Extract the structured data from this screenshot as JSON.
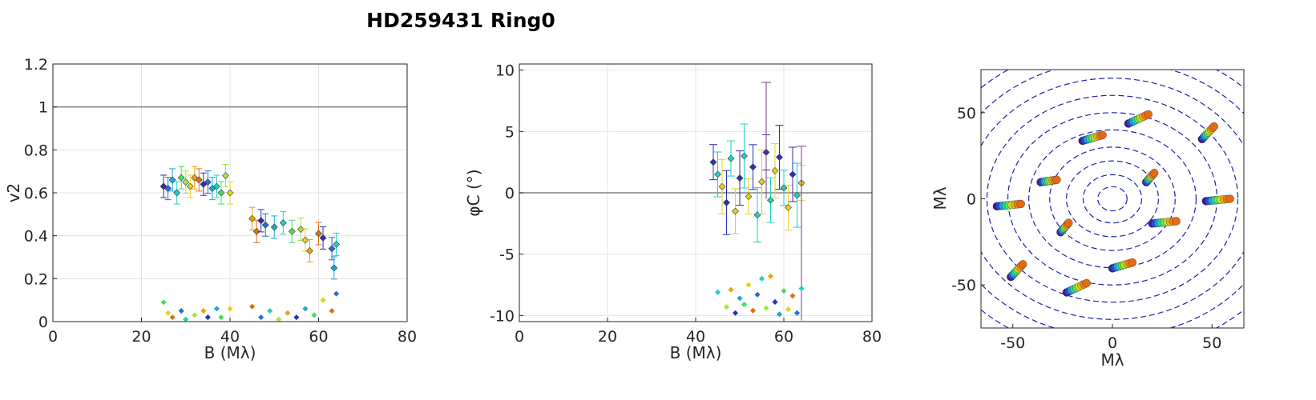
{
  "title": "HD259431  Ring0",
  "chart_data": [
    {
      "type": "scatter",
      "xlabel": "B (Mλ)",
      "ylabel": "v2",
      "xlim": [
        0,
        80
      ],
      "ylim": [
        0,
        1.2
      ],
      "xticks": [
        "0",
        "20",
        "40",
        "60",
        "80"
      ],
      "yticks": [
        "0",
        "0.2",
        "0.4",
        "0.6",
        "0.8",
        "1",
        "1.2"
      ],
      "grid": true,
      "reference_line": 1,
      "observed": [
        {
          "x": 25,
          "y": 0.63
        },
        {
          "x": 26,
          "y": 0.62
        },
        {
          "x": 27,
          "y": 0.66
        },
        {
          "x": 28,
          "y": 0.6
        },
        {
          "x": 29,
          "y": 0.67
        },
        {
          "x": 30,
          "y": 0.65
        },
        {
          "x": 31,
          "y": 0.63
        },
        {
          "x": 32,
          "y": 0.67
        },
        {
          "x": 33,
          "y": 0.66
        },
        {
          "x": 34,
          "y": 0.64
        },
        {
          "x": 35,
          "y": 0.65
        },
        {
          "x": 36,
          "y": 0.62
        },
        {
          "x": 37,
          "y": 0.63
        },
        {
          "x": 38,
          "y": 0.6
        },
        {
          "x": 39,
          "y": 0.68
        },
        {
          "x": 40,
          "y": 0.6
        },
        {
          "x": 45,
          "y": 0.48
        },
        {
          "x": 46,
          "y": 0.42
        },
        {
          "x": 47,
          "y": 0.47
        },
        {
          "x": 48,
          "y": 0.45
        },
        {
          "x": 50,
          "y": 0.44
        },
        {
          "x": 52,
          "y": 0.46
        },
        {
          "x": 54,
          "y": 0.42
        },
        {
          "x": 56,
          "y": 0.43
        },
        {
          "x": 57,
          "y": 0.38
        },
        {
          "x": 58,
          "y": 0.33
        },
        {
          "x": 60,
          "y": 0.41
        },
        {
          "x": 61,
          "y": 0.39
        },
        {
          "x": 63,
          "y": 0.34
        },
        {
          "x": 63.5,
          "y": 0.25
        },
        {
          "x": 64,
          "y": 0.36
        }
      ],
      "model_points": [
        {
          "x": 25,
          "y": 0.09
        },
        {
          "x": 26,
          "y": 0.04
        },
        {
          "x": 27,
          "y": 0.02
        },
        {
          "x": 29,
          "y": 0.05
        },
        {
          "x": 30,
          "y": 0.01
        },
        {
          "x": 32,
          "y": 0.03
        },
        {
          "x": 34,
          "y": 0.05
        },
        {
          "x": 35,
          "y": 0.02
        },
        {
          "x": 37,
          "y": 0.06
        },
        {
          "x": 38,
          "y": 0.02
        },
        {
          "x": 40,
          "y": 0.06
        },
        {
          "x": 45,
          "y": 0.07
        },
        {
          "x": 47,
          "y": 0.02
        },
        {
          "x": 49,
          "y": 0.05
        },
        {
          "x": 51,
          "y": 0.01
        },
        {
          "x": 53,
          "y": 0.04
        },
        {
          "x": 55,
          "y": 0.02
        },
        {
          "x": 57,
          "y": 0.06
        },
        {
          "x": 59,
          "y": 0.03
        },
        {
          "x": 61,
          "y": 0.1
        },
        {
          "x": 63,
          "y": 0.05
        },
        {
          "x": 64,
          "y": 0.13
        }
      ]
    },
    {
      "type": "scatter",
      "xlabel": "B (Mλ)",
      "ylabel": "φC (°)",
      "xlim": [
        0,
        80
      ],
      "ylim": [
        -10.5,
        10.5
      ],
      "xticks": [
        "0",
        "20",
        "40",
        "60",
        "80"
      ],
      "yticks": [
        "-10",
        "-5",
        "0",
        "5",
        "10"
      ],
      "grid": true,
      "reference_line": 0,
      "observed": [
        {
          "x": 44,
          "y": 2.5
        },
        {
          "x": 45,
          "y": 1.5
        },
        {
          "x": 46,
          "y": 0.5
        },
        {
          "x": 47,
          "y": -0.8
        },
        {
          "x": 48,
          "y": 2.8
        },
        {
          "x": 49,
          "y": -1.5
        },
        {
          "x": 50,
          "y": 1.2
        },
        {
          "x": 51,
          "y": 3.0
        },
        {
          "x": 52,
          "y": -0.3
        },
        {
          "x": 53,
          "y": 2.1
        },
        {
          "x": 54,
          "y": -1.8
        },
        {
          "x": 55,
          "y": 0.9
        },
        {
          "x": 56,
          "y": 3.3
        },
        {
          "x": 57,
          "y": -0.6
        },
        {
          "x": 58,
          "y": 1.8
        },
        {
          "x": 59,
          "y": 2.9
        },
        {
          "x": 60,
          "y": 0.4
        },
        {
          "x": 61,
          "y": -1.2
        },
        {
          "x": 62,
          "y": 1.5
        },
        {
          "x": 63,
          "y": -0.2
        },
        {
          "x": 64,
          "y": 0.8
        }
      ],
      "model_points": [
        {
          "x": 45,
          "y": -8.1
        },
        {
          "x": 47,
          "y": -9.3
        },
        {
          "x": 48,
          "y": -7.9
        },
        {
          "x": 49,
          "y": -9.8
        },
        {
          "x": 50,
          "y": -8.6
        },
        {
          "x": 51,
          "y": -9.1
        },
        {
          "x": 52,
          "y": -7.5
        },
        {
          "x": 53,
          "y": -9.6
        },
        {
          "x": 54,
          "y": -8.3
        },
        {
          "x": 55,
          "y": -7.0
        },
        {
          "x": 56,
          "y": -9.4
        },
        {
          "x": 57,
          "y": -6.8
        },
        {
          "x": 58,
          "y": -8.9
        },
        {
          "x": 59,
          "y": -9.9
        },
        {
          "x": 60,
          "y": -8.0
        },
        {
          "x": 61,
          "y": -9.5
        },
        {
          "x": 62,
          "y": -8.4
        },
        {
          "x": 63,
          "y": -9.8
        },
        {
          "x": 64,
          "y": -7.8
        }
      ]
    },
    {
      "type": "scatter",
      "xlabel": "Mλ",
      "ylabel": "Mλ",
      "xlim": [
        -66,
        66
      ],
      "ylim": [
        -75,
        75
      ],
      "xticks": [
        "-50",
        "0",
        "50"
      ],
      "yticks": [
        "-50",
        "0",
        "50"
      ],
      "ring_radii": [
        7,
        14,
        22,
        30,
        40,
        50,
        60,
        70,
        80,
        90
      ],
      "uv_tracks": [
        {
          "u": 13,
          "v": 48,
          "du": 5,
          "dv": 1
        },
        {
          "u": -10,
          "v": 37,
          "du": 5,
          "dv": 0
        },
        {
          "u": 48,
          "v": 40,
          "du": 3,
          "dv": 2
        },
        {
          "u": -32,
          "v": 12,
          "du": 4,
          "dv": -1
        },
        {
          "u": 19,
          "v": 14,
          "du": 2,
          "dv": 1
        },
        {
          "u": -52,
          "v": -2,
          "du": 6,
          "dv": -1
        },
        {
          "u": 53,
          "v": 1,
          "du": 6,
          "dv": -1
        },
        {
          "u": 26,
          "v": -12,
          "du": 6,
          "dv": -1
        },
        {
          "u": -24,
          "v": -15,
          "du": 2,
          "dv": 1
        },
        {
          "u": 5,
          "v": -37,
          "du": 5,
          "dv": 0
        },
        {
          "u": -48,
          "v": -40,
          "du": 3,
          "dv": 2
        },
        {
          "u": -18,
          "v": -50,
          "du": 5,
          "dv": 1
        }
      ]
    }
  ]
}
